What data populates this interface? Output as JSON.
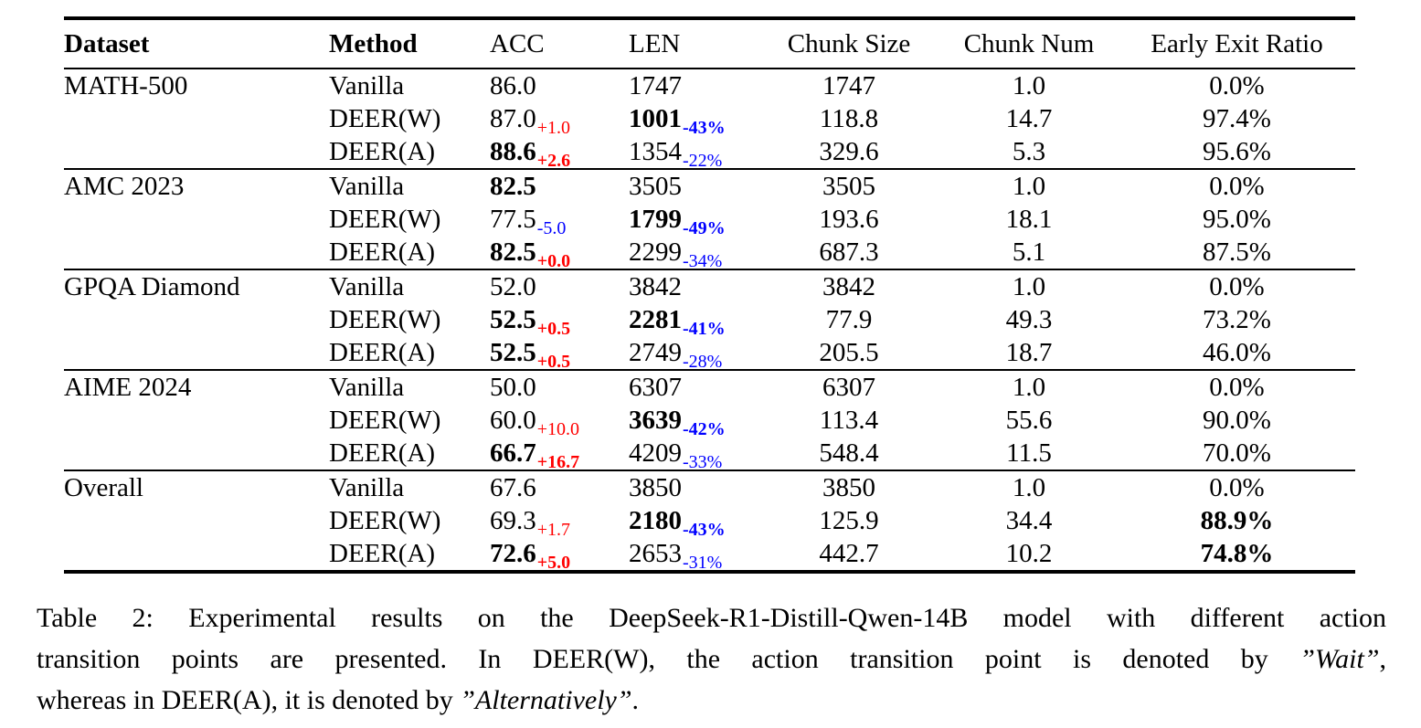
{
  "colors": {
    "text": "#000000",
    "positive_delta": "#ff0000",
    "negative_delta": "#0000ff"
  },
  "table": {
    "columns": [
      {
        "label": "Dataset",
        "bold": true,
        "align": "left"
      },
      {
        "label": "Method",
        "bold": true,
        "align": "left"
      },
      {
        "label": "ACC",
        "bold": false,
        "align": "left"
      },
      {
        "label": "LEN",
        "bold": false,
        "align": "left"
      },
      {
        "label": "Chunk Size",
        "bold": false,
        "align": "center"
      },
      {
        "label": "Chunk Num",
        "bold": false,
        "align": "center"
      },
      {
        "label": "Early Exit Ratio",
        "bold": false,
        "align": "center"
      }
    ],
    "groups": [
      {
        "dataset": "MATH-500",
        "rows": [
          {
            "method": "Vanilla",
            "acc": {
              "t": "86.0"
            },
            "len": {
              "t": "1747"
            },
            "chunk_size": {
              "t": "1747"
            },
            "chunk_num": {
              "t": "1.0"
            },
            "early_exit_ratio": {
              "t": "0.0%"
            }
          },
          {
            "method": "DEER(W)",
            "acc": {
              "t": "87.0",
              "sub": {
                "t": "+1.0",
                "color": "#ff0000"
              }
            },
            "len": {
              "t": "1001",
              "b": true,
              "sub": {
                "t": "-43%",
                "color": "#0000ff",
                "b": true
              }
            },
            "chunk_size": {
              "t": "118.8"
            },
            "chunk_num": {
              "t": "14.7"
            },
            "early_exit_ratio": {
              "t": "97.4%"
            }
          },
          {
            "method": "DEER(A)",
            "acc": {
              "t": "88.6",
              "b": true,
              "sub": {
                "t": "+2.6",
                "color": "#ff0000",
                "b": true
              }
            },
            "len": {
              "t": "1354",
              "sub": {
                "t": "-22%",
                "color": "#0000ff"
              }
            },
            "chunk_size": {
              "t": "329.6"
            },
            "chunk_num": {
              "t": "5.3"
            },
            "early_exit_ratio": {
              "t": "95.6%"
            }
          }
        ]
      },
      {
        "dataset": "AMC 2023",
        "rows": [
          {
            "method": "Vanilla",
            "acc": {
              "t": "82.5",
              "b": true
            },
            "len": {
              "t": "3505"
            },
            "chunk_size": {
              "t": "3505"
            },
            "chunk_num": {
              "t": "1.0"
            },
            "early_exit_ratio": {
              "t": "0.0%"
            }
          },
          {
            "method": "DEER(W)",
            "acc": {
              "t": "77.5",
              "sub": {
                "t": "-5.0",
                "color": "#0000ff"
              }
            },
            "len": {
              "t": "1799",
              "b": true,
              "sub": {
                "t": "-49%",
                "color": "#0000ff",
                "b": true
              }
            },
            "chunk_size": {
              "t": "193.6"
            },
            "chunk_num": {
              "t": "18.1"
            },
            "early_exit_ratio": {
              "t": "95.0%"
            }
          },
          {
            "method": "DEER(A)",
            "acc": {
              "t": "82.5",
              "b": true,
              "sub": {
                "t": "+0.0",
                "color": "#ff0000",
                "b": true
              }
            },
            "len": {
              "t": "2299",
              "sub": {
                "t": "-34%",
                "color": "#0000ff"
              }
            },
            "chunk_size": {
              "t": "687.3"
            },
            "chunk_num": {
              "t": "5.1"
            },
            "early_exit_ratio": {
              "t": "87.5%"
            }
          }
        ]
      },
      {
        "dataset": "GPQA Diamond",
        "rows": [
          {
            "method": "Vanilla",
            "acc": {
              "t": "52.0"
            },
            "len": {
              "t": "3842"
            },
            "chunk_size": {
              "t": "3842"
            },
            "chunk_num": {
              "t": "1.0"
            },
            "early_exit_ratio": {
              "t": "0.0%"
            }
          },
          {
            "method": "DEER(W)",
            "acc": {
              "t": "52.5",
              "b": true,
              "sub": {
                "t": "+0.5",
                "color": "#ff0000",
                "b": true
              }
            },
            "len": {
              "t": "2281",
              "b": true,
              "sub": {
                "t": "-41%",
                "color": "#0000ff",
                "b": true
              }
            },
            "chunk_size": {
              "t": "77.9"
            },
            "chunk_num": {
              "t": "49.3"
            },
            "early_exit_ratio": {
              "t": "73.2%"
            }
          },
          {
            "method": "DEER(A)",
            "acc": {
              "t": "52.5",
              "b": true,
              "sub": {
                "t": "+0.5",
                "color": "#ff0000",
                "b": true
              }
            },
            "len": {
              "t": "2749",
              "sub": {
                "t": "-28%",
                "color": "#0000ff"
              }
            },
            "chunk_size": {
              "t": "205.5"
            },
            "chunk_num": {
              "t": "18.7"
            },
            "early_exit_ratio": {
              "t": "46.0%"
            }
          }
        ]
      },
      {
        "dataset": "AIME 2024",
        "rows": [
          {
            "method": "Vanilla",
            "acc": {
              "t": "50.0"
            },
            "len": {
              "t": "6307"
            },
            "chunk_size": {
              "t": "6307"
            },
            "chunk_num": {
              "t": "1.0"
            },
            "early_exit_ratio": {
              "t": "0.0%"
            }
          },
          {
            "method": "DEER(W)",
            "acc": {
              "t": "60.0",
              "sub": {
                "t": "+10.0",
                "color": "#ff0000"
              }
            },
            "len": {
              "t": "3639",
              "b": true,
              "sub": {
                "t": "-42%",
                "color": "#0000ff",
                "b": true
              }
            },
            "chunk_size": {
              "t": "113.4"
            },
            "chunk_num": {
              "t": "55.6"
            },
            "early_exit_ratio": {
              "t": "90.0%"
            }
          },
          {
            "method": "DEER(A)",
            "acc": {
              "t": "66.7",
              "b": true,
              "sub": {
                "t": "+16.7",
                "color": "#ff0000",
                "b": true
              }
            },
            "len": {
              "t": "4209",
              "sub": {
                "t": "-33%",
                "color": "#0000ff"
              }
            },
            "chunk_size": {
              "t": "548.4"
            },
            "chunk_num": {
              "t": "11.5"
            },
            "early_exit_ratio": {
              "t": "70.0%"
            }
          }
        ]
      },
      {
        "dataset": "Overall",
        "rows": [
          {
            "method": "Vanilla",
            "acc": {
              "t": "67.6"
            },
            "len": {
              "t": "3850"
            },
            "chunk_size": {
              "t": "3850"
            },
            "chunk_num": {
              "t": "1.0"
            },
            "early_exit_ratio": {
              "t": "0.0%"
            }
          },
          {
            "method": "DEER(W)",
            "acc": {
              "t": "69.3",
              "sub": {
                "t": "+1.7",
                "color": "#ff0000"
              }
            },
            "len": {
              "t": "2180",
              "b": true,
              "sub": {
                "t": "-43%",
                "color": "#0000ff",
                "b": true
              }
            },
            "chunk_size": {
              "t": "125.9"
            },
            "chunk_num": {
              "t": "34.4"
            },
            "early_exit_ratio": {
              "t": "88.9%",
              "b": true
            }
          },
          {
            "method": "DEER(A)",
            "acc": {
              "t": "72.6",
              "b": true,
              "sub": {
                "t": "+5.0",
                "color": "#ff0000",
                "b": true
              }
            },
            "len": {
              "t": "2653",
              "sub": {
                "t": "-31%",
                "color": "#0000ff"
              }
            },
            "chunk_size": {
              "t": "442.7"
            },
            "chunk_num": {
              "t": "10.2"
            },
            "early_exit_ratio": {
              "t": "74.8%",
              "b": true
            }
          }
        ]
      }
    ]
  },
  "caption": {
    "lines": [
      {
        "justify": true,
        "segments": [
          {
            "t": "Table 2: Experimental results on the DeepSeek-R1-Distill-Qwen-14B model with different action"
          }
        ]
      },
      {
        "justify": true,
        "segments": [
          {
            "t": "transition points are presented.  In DEER(W), the action transition point is denoted by "
          },
          {
            "t": "”Wait”",
            "i": true
          },
          {
            "t": ","
          }
        ]
      },
      {
        "justify": false,
        "segments": [
          {
            "t": "whereas in DEER(A), it is denoted by "
          },
          {
            "t": "”Alternatively”",
            "i": true
          },
          {
            "t": "."
          }
        ]
      }
    ]
  }
}
